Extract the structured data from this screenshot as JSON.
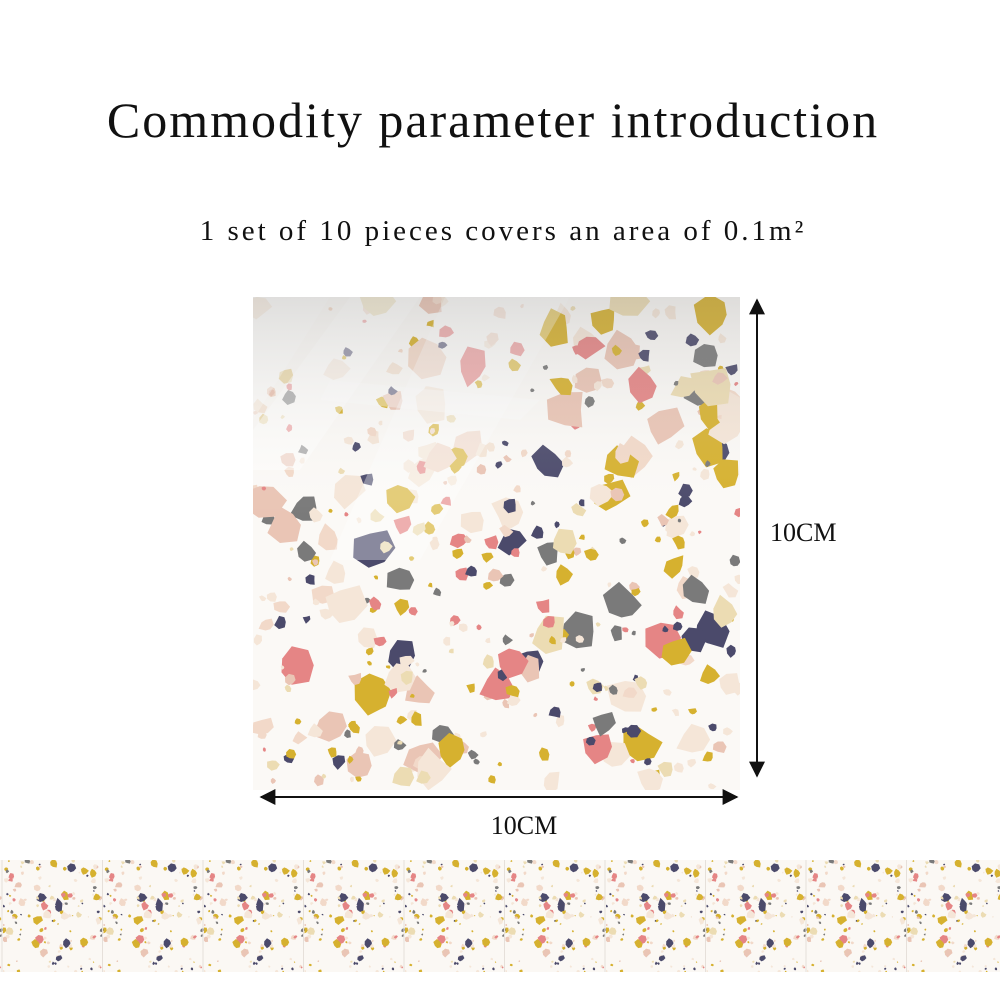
{
  "header": {
    "title": "Commodity parameter introduction",
    "subtitle": "1 set of 10 pieces covers an area of 0.1m²"
  },
  "dimensions": {
    "height_label": "10CM",
    "width_label": "10CM"
  }
}
